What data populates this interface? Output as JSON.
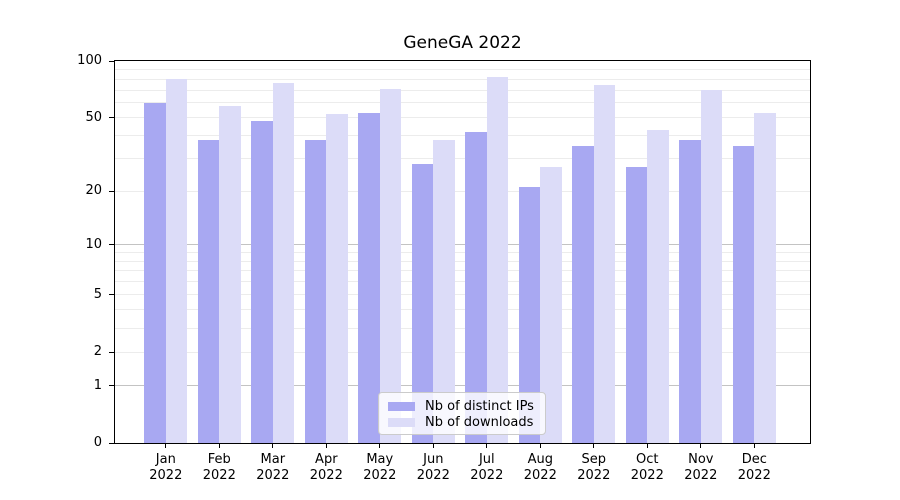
{
  "chart_data": {
    "type": "bar",
    "title": "GeneGA 2022",
    "categories": [
      "Jan",
      "Feb",
      "Mar",
      "Apr",
      "May",
      "Jun",
      "Jul",
      "Aug",
      "Sep",
      "Oct",
      "Nov",
      "Dec"
    ],
    "year": "2022",
    "series": [
      {
        "name": "Nb of distinct IPs",
        "color": "#a8a8f2",
        "values": [
          60,
          38,
          48,
          38,
          53,
          28,
          42,
          21,
          35,
          27,
          38,
          35
        ]
      },
      {
        "name": "Nb of downloads",
        "color": "#dcdcf8",
        "values": [
          80,
          58,
          76,
          52,
          71,
          38,
          82,
          27,
          75,
          43,
          70,
          53
        ]
      }
    ],
    "xlabel": "",
    "ylabel": "",
    "yscale": "log1p",
    "ylim": [
      0,
      100
    ],
    "y_ticks": [
      0,
      1,
      2,
      5,
      10,
      20,
      50,
      100
    ],
    "grid": "horizontal log gridlines, majors at 1/10/100, minors at 2-9 and 20-90",
    "legend_position": "lower center inside plot",
    "colors": {
      "major_gridline": "#c3c3c3",
      "minor_gridline": "#ececec",
      "axis": "#000000",
      "legend_border": "#cbcbcb"
    }
  }
}
